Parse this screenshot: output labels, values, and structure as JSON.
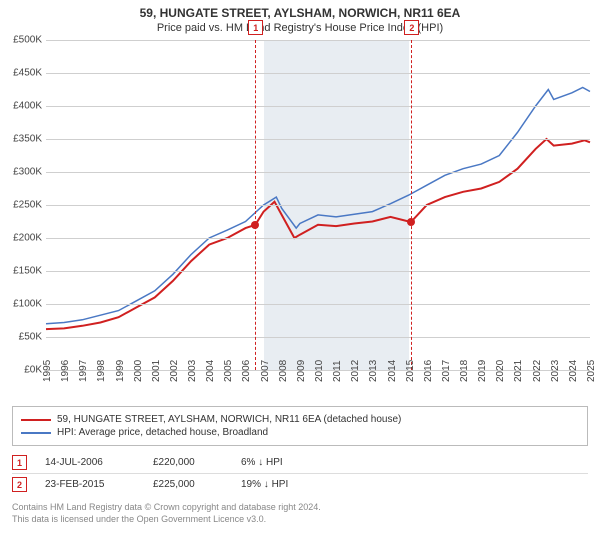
{
  "title_line1": "59, HUNGATE STREET, AYLSHAM, NORWICH, NR11 6EA",
  "title_line2": "Price paid vs. HM Land Registry's House Price Index (HPI)",
  "chart": {
    "type": "line",
    "x_start": 1995,
    "x_end": 2025,
    "ylim": [
      0,
      500000
    ],
    "ytick_step": 50000,
    "y_prefix": "£",
    "y_suffixK": true,
    "grid_color": "#cfcfcf",
    "background_color": "#ffffff",
    "shade_band": {
      "start": 2007,
      "end": 2015,
      "color": "#e8edf2"
    },
    "label_fontsize": 10,
    "series": [
      {
        "name": "59, HUNGATE STREET, AYLSHAM, NORWICH, NR11 6EA (detached house)",
        "color": "#d02020",
        "line_width": 2,
        "data": [
          [
            1995,
            62000
          ],
          [
            1996,
            63000
          ],
          [
            1997,
            67000
          ],
          [
            1998,
            72000
          ],
          [
            1999,
            80000
          ],
          [
            2000,
            95000
          ],
          [
            2001,
            110000
          ],
          [
            2002,
            135000
          ],
          [
            2003,
            165000
          ],
          [
            2004,
            190000
          ],
          [
            2005,
            200000
          ],
          [
            2006,
            215000
          ],
          [
            2006.54,
            220000
          ],
          [
            2007,
            240000
          ],
          [
            2007.6,
            255000
          ],
          [
            2008,
            235000
          ],
          [
            2008.7,
            200000
          ],
          [
            2009,
            205000
          ],
          [
            2010,
            220000
          ],
          [
            2011,
            218000
          ],
          [
            2012,
            222000
          ],
          [
            2013,
            225000
          ],
          [
            2014,
            232000
          ],
          [
            2015,
            225000
          ],
          [
            2015.15,
            225000
          ],
          [
            2016,
            250000
          ],
          [
            2017,
            262000
          ],
          [
            2018,
            270000
          ],
          [
            2019,
            275000
          ],
          [
            2020,
            285000
          ],
          [
            2021,
            305000
          ],
          [
            2022,
            335000
          ],
          [
            2022.6,
            350000
          ],
          [
            2023,
            340000
          ],
          [
            2024,
            343000
          ],
          [
            2024.7,
            348000
          ],
          [
            2025,
            345000
          ]
        ]
      },
      {
        "name": "HPI: Average price, detached house, Broadland",
        "color": "#4a78c4",
        "line_width": 1.5,
        "data": [
          [
            1995,
            70000
          ],
          [
            1996,
            72000
          ],
          [
            1997,
            76000
          ],
          [
            1998,
            83000
          ],
          [
            1999,
            90000
          ],
          [
            2000,
            105000
          ],
          [
            2001,
            120000
          ],
          [
            2002,
            145000
          ],
          [
            2003,
            175000
          ],
          [
            2004,
            200000
          ],
          [
            2005,
            212000
          ],
          [
            2006,
            225000
          ],
          [
            2007,
            250000
          ],
          [
            2007.7,
            262000
          ],
          [
            2008,
            245000
          ],
          [
            2008.8,
            215000
          ],
          [
            2009,
            222000
          ],
          [
            2010,
            235000
          ],
          [
            2011,
            232000
          ],
          [
            2012,
            236000
          ],
          [
            2013,
            240000
          ],
          [
            2014,
            252000
          ],
          [
            2015,
            265000
          ],
          [
            2016,
            280000
          ],
          [
            2017,
            295000
          ],
          [
            2018,
            305000
          ],
          [
            2019,
            312000
          ],
          [
            2020,
            325000
          ],
          [
            2021,
            360000
          ],
          [
            2022,
            400000
          ],
          [
            2022.7,
            425000
          ],
          [
            2023,
            410000
          ],
          [
            2024,
            420000
          ],
          [
            2024.6,
            428000
          ],
          [
            2025,
            422000
          ]
        ]
      }
    ],
    "markers": [
      {
        "x": 2006.54,
        "y": 220000,
        "color": "#d02020"
      },
      {
        "x": 2015.15,
        "y": 225000,
        "color": "#d02020"
      }
    ],
    "event_lines": [
      {
        "x": 2006.54,
        "label": "1",
        "color": "#d02020"
      },
      {
        "x": 2015.15,
        "label": "2",
        "color": "#d02020"
      }
    ]
  },
  "legend": [
    "59, HUNGATE STREET, AYLSHAM, NORWICH, NR11 6EA (detached house)",
    "HPI: Average price, detached house, Broadland"
  ],
  "sales": [
    {
      "flag": "1",
      "date": "14-JUL-2006",
      "price": "£220,000",
      "note": "6% ↓ HPI"
    },
    {
      "flag": "2",
      "date": "23-FEB-2015",
      "price": "£225,000",
      "note": "19% ↓ HPI"
    }
  ],
  "footer1": "Contains HM Land Registry data © Crown copyright and database right 2024.",
  "footer2": "This data is licensed under the Open Government Licence v3.0."
}
